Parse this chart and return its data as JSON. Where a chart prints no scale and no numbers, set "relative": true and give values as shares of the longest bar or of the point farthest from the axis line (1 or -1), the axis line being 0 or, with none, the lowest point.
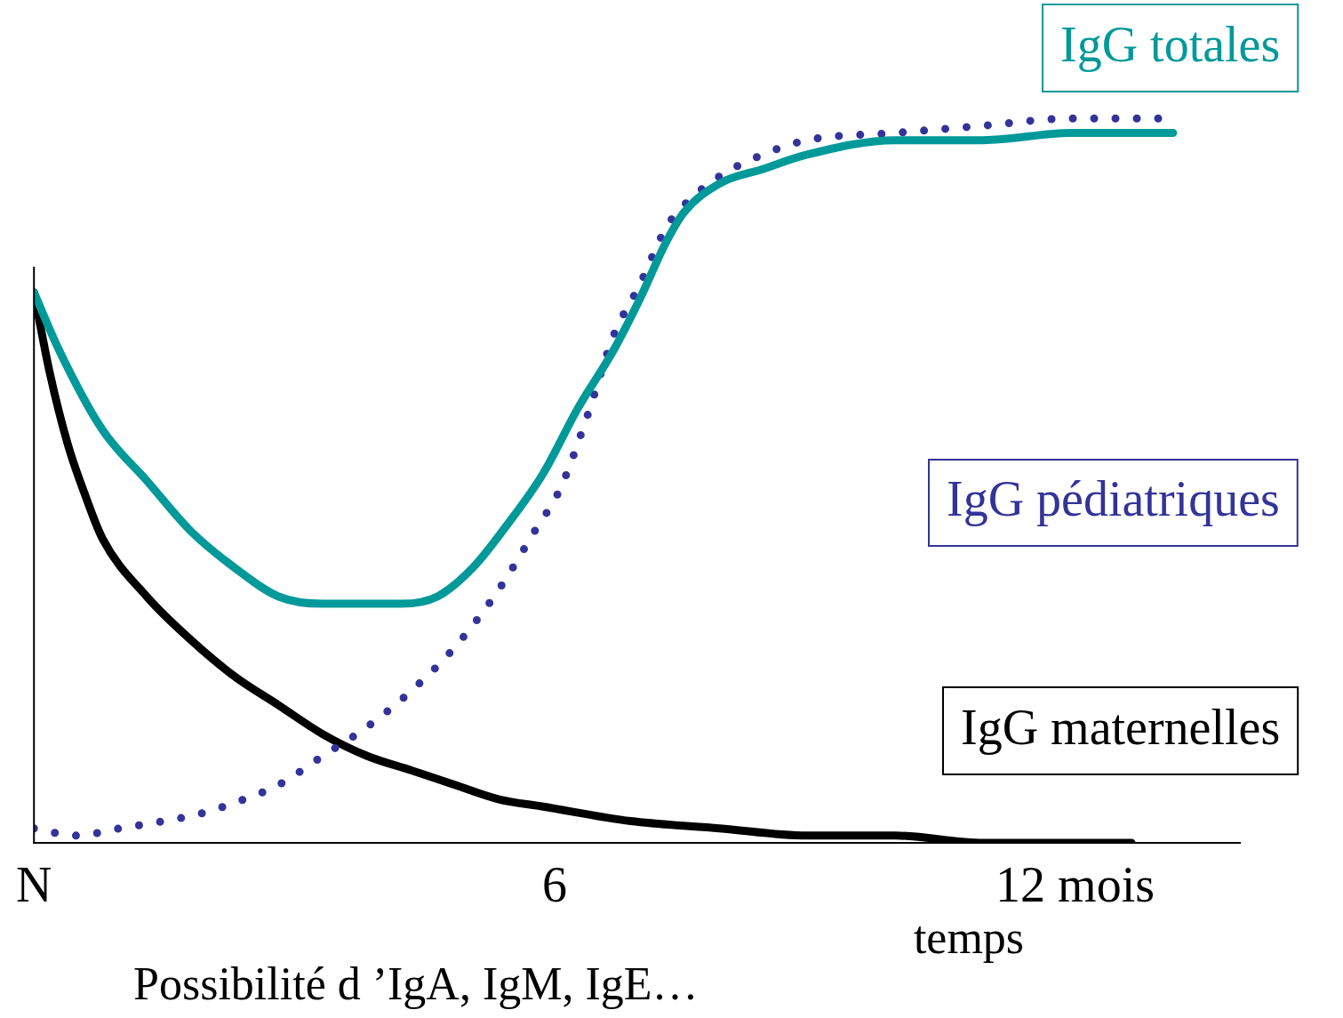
{
  "chart_data": {
    "type": "line",
    "relative": true,
    "xlabel": "temps",
    "xlim": [
      0,
      13.9
    ],
    "xticks": [
      {
        "value": 0,
        "label": "N"
      },
      6,
      {
        "value": 12,
        "label": "12 mois"
      }
    ],
    "grid": false,
    "legend": false,
    "marker": "none",
    "annotations": [
      "Possibilité d ’IgA, IgM, IgE…"
    ],
    "series": [
      {
        "name": "IgG totales",
        "color": "#009999",
        "line_style": "solid",
        "x": [
          0,
          0.29,
          0.79,
          1.3,
          1.81,
          2.31,
          2.82,
          3.33,
          3.84,
          4.24,
          4.65,
          5.06,
          5.46,
          5.87,
          6.27,
          6.68,
          6.98,
          7.29,
          7.49,
          7.9,
          8.4,
          8.91,
          9.93,
          10.94,
          11.96,
          13.13
        ],
        "values": [
          0.76,
          0.68,
          0.57,
          0.5,
          0.43,
          0.38,
          0.34,
          0.33,
          0.33,
          0.33,
          0.34,
          0.38,
          0.44,
          0.51,
          0.6,
          0.68,
          0.75,
          0.83,
          0.87,
          0.91,
          0.93,
          0.95,
          0.97,
          0.97,
          0.98,
          0.98
        ]
      },
      {
        "name": "IgG pédiatriques",
        "color": "#333399",
        "line_style": "dotted",
        "x": [
          0,
          0.49,
          0.99,
          1.5,
          1.91,
          2.42,
          2.82,
          3.33,
          3.84,
          4.35,
          4.85,
          5.36,
          5.77,
          6.07,
          6.38,
          6.68,
          6.98,
          7.29,
          7.49,
          7.9,
          8.4,
          8.91,
          9.93,
          10.94,
          11.96,
          13.07
        ],
        "values": [
          0.02,
          0.01,
          0.02,
          0.03,
          0.04,
          0.06,
          0.08,
          0.12,
          0.16,
          0.21,
          0.27,
          0.35,
          0.43,
          0.49,
          0.59,
          0.7,
          0.77,
          0.85,
          0.88,
          0.92,
          0.95,
          0.97,
          0.98,
          0.99,
          1.0,
          1.0
        ]
      },
      {
        "name": "IgG maternelles",
        "color": "#000000",
        "line_style": "solid",
        "x": [
          0,
          0.18,
          0.39,
          0.59,
          0.79,
          1.3,
          1.81,
          2.31,
          2.82,
          3.33,
          3.84,
          4.35,
          4.85,
          5.36,
          5.87,
          6.88,
          7.9,
          8.91,
          9.93,
          10.94,
          12.65
        ],
        "values": [
          0.76,
          0.65,
          0.55,
          0.48,
          0.42,
          0.34,
          0.28,
          0.23,
          0.19,
          0.15,
          0.12,
          0.1,
          0.08,
          0.06,
          0.05,
          0.03,
          0.02,
          0.01,
          0.01,
          0,
          0
        ]
      }
    ]
  }
}
